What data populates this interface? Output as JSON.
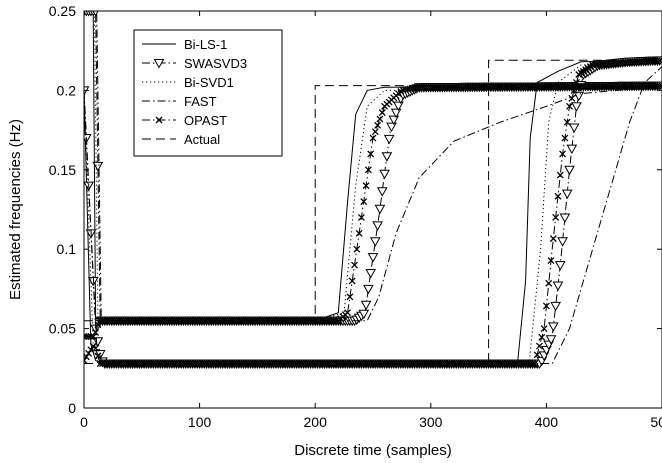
{
  "chart_data": {
    "type": "line",
    "title": "",
    "xlabel": "Discrete time (samples)",
    "ylabel": "Estimated frequencies (Hz)",
    "xlim": [
      0,
      500
    ],
    "ylim": [
      0,
      0.25
    ],
    "xticks": [
      0,
      100,
      200,
      300,
      400,
      500
    ],
    "yticks": [
      0,
      0.05,
      0.1,
      0.15,
      0.2,
      0.25
    ],
    "xtick_labels": [
      "0",
      "100",
      "200",
      "300",
      "400",
      "500"
    ],
    "ytick_labels": [
      "0",
      "0.05",
      "0.1",
      "0.15",
      "0.2",
      "0.25"
    ],
    "grid": false,
    "legend_position": "top-left",
    "series": [
      {
        "name": "Bi-LS-1",
        "style": "solid",
        "marker": "none",
        "tracks": [
          [
            [
              0,
              0.25
            ],
            [
              8,
              0.25
            ],
            [
              10,
              0.055
            ],
            [
              200,
              0.055
            ],
            [
              220,
              0.06
            ],
            [
              228,
              0.13
            ],
            [
              235,
              0.185
            ],
            [
              245,
              0.2
            ],
            [
              260,
              0.202
            ],
            [
              500,
              0.203
            ]
          ],
          [
            [
              0,
              0.2
            ],
            [
              6,
              0.04
            ],
            [
              10,
              0.03
            ],
            [
              15,
              0.028
            ],
            [
              375,
              0.028
            ],
            [
              382,
              0.08
            ],
            [
              386,
              0.17
            ],
            [
              392,
              0.205
            ],
            [
              410,
              0.212
            ],
            [
              430,
              0.218
            ],
            [
              500,
              0.219
            ]
          ]
        ]
      },
      {
        "name": "SWASVD3",
        "style": "dash-dot",
        "marker": "triangle-down",
        "tracks": [
          [
            [
              0,
              0.25
            ],
            [
              10,
              0.25
            ],
            [
              14,
              0.055
            ],
            [
              200,
              0.055
            ],
            [
              235,
              0.055
            ],
            [
              243,
              0.06
            ],
            [
              255,
              0.12
            ],
            [
              265,
              0.175
            ],
            [
              275,
              0.197
            ],
            [
              290,
              0.202
            ],
            [
              500,
              0.203
            ]
          ],
          [
            [
              0,
              0.2
            ],
            [
              10,
              0.05
            ],
            [
              15,
              0.03
            ],
            [
              18,
              0.028
            ],
            [
              395,
              0.028
            ],
            [
              405,
              0.045
            ],
            [
              412,
              0.09
            ],
            [
              420,
              0.15
            ],
            [
              426,
              0.19
            ],
            [
              432,
              0.21
            ],
            [
              445,
              0.216
            ],
            [
              470,
              0.218
            ],
            [
              500,
              0.219
            ]
          ]
        ]
      },
      {
        "name": "Bi-SVD1",
        "style": "dotted",
        "marker": "none",
        "tracks": [
          [
            [
              0,
              0.25
            ],
            [
              9,
              0.25
            ],
            [
              12,
              0.055
            ],
            [
              200,
              0.055
            ],
            [
              225,
              0.06
            ],
            [
              235,
              0.14
            ],
            [
              245,
              0.19
            ],
            [
              260,
              0.2
            ],
            [
              500,
              0.203
            ]
          ],
          [
            [
              0,
              0.2
            ],
            [
              8,
              0.04
            ],
            [
              12,
              0.028
            ],
            [
              385,
              0.028
            ],
            [
              395,
              0.1
            ],
            [
              402,
              0.18
            ],
            [
              410,
              0.205
            ],
            [
              430,
              0.216
            ],
            [
              500,
              0.219
            ]
          ]
        ]
      },
      {
        "name": "FAST",
        "style": "dash-dot",
        "marker": "none",
        "tracks": [
          [
            [
              0,
              0.25
            ],
            [
              11,
              0.25
            ],
            [
              15,
              0.055
            ],
            [
              245,
              0.055
            ],
            [
              255,
              0.07
            ],
            [
              270,
              0.11
            ],
            [
              290,
              0.145
            ],
            [
              320,
              0.168
            ],
            [
              360,
              0.18
            ],
            [
              400,
              0.19
            ],
            [
              430,
              0.198
            ],
            [
              460,
              0.2
            ],
            [
              500,
              0.202
            ]
          ],
          [
            [
              0,
              0.2
            ],
            [
              11,
              0.04
            ],
            [
              16,
              0.028
            ],
            [
              405,
              0.028
            ],
            [
              420,
              0.05
            ],
            [
              440,
              0.1
            ],
            [
              460,
              0.15
            ],
            [
              472,
              0.18
            ],
            [
              485,
              0.205
            ],
            [
              500,
              0.215
            ]
          ]
        ]
      },
      {
        "name": "OPAST",
        "style": "dash-dot",
        "marker": "x",
        "tracks": [
          [
            [
              0,
              0.045
            ],
            [
              9,
              0.045
            ],
            [
              13,
              0.055
            ],
            [
              220,
              0.055
            ],
            [
              228,
              0.06
            ],
            [
              240,
              0.12
            ],
            [
              250,
              0.17
            ],
            [
              260,
              0.19
            ],
            [
              275,
              0.2
            ],
            [
              290,
              0.202
            ],
            [
              500,
              0.203
            ]
          ],
          [
            [
              0,
              0.03
            ],
            [
              9,
              0.04
            ],
            [
              14,
              0.028
            ],
            [
              390,
              0.028
            ],
            [
              398,
              0.05
            ],
            [
              405,
              0.1
            ],
            [
              414,
              0.16
            ],
            [
              420,
              0.19
            ],
            [
              428,
              0.21
            ],
            [
              440,
              0.216
            ],
            [
              500,
              0.219
            ]
          ]
        ]
      },
      {
        "name": "Actual",
        "style": "dashed",
        "marker": "none",
        "tracks": [
          [
            [
              0,
              0.055
            ],
            [
              200,
              0.055
            ],
            [
              200,
              0.203
            ],
            [
              500,
              0.203
            ]
          ],
          [
            [
              0,
              0.028
            ],
            [
              350,
              0.028
            ],
            [
              350,
              0.219
            ],
            [
              500,
              0.219
            ]
          ]
        ]
      }
    ]
  }
}
